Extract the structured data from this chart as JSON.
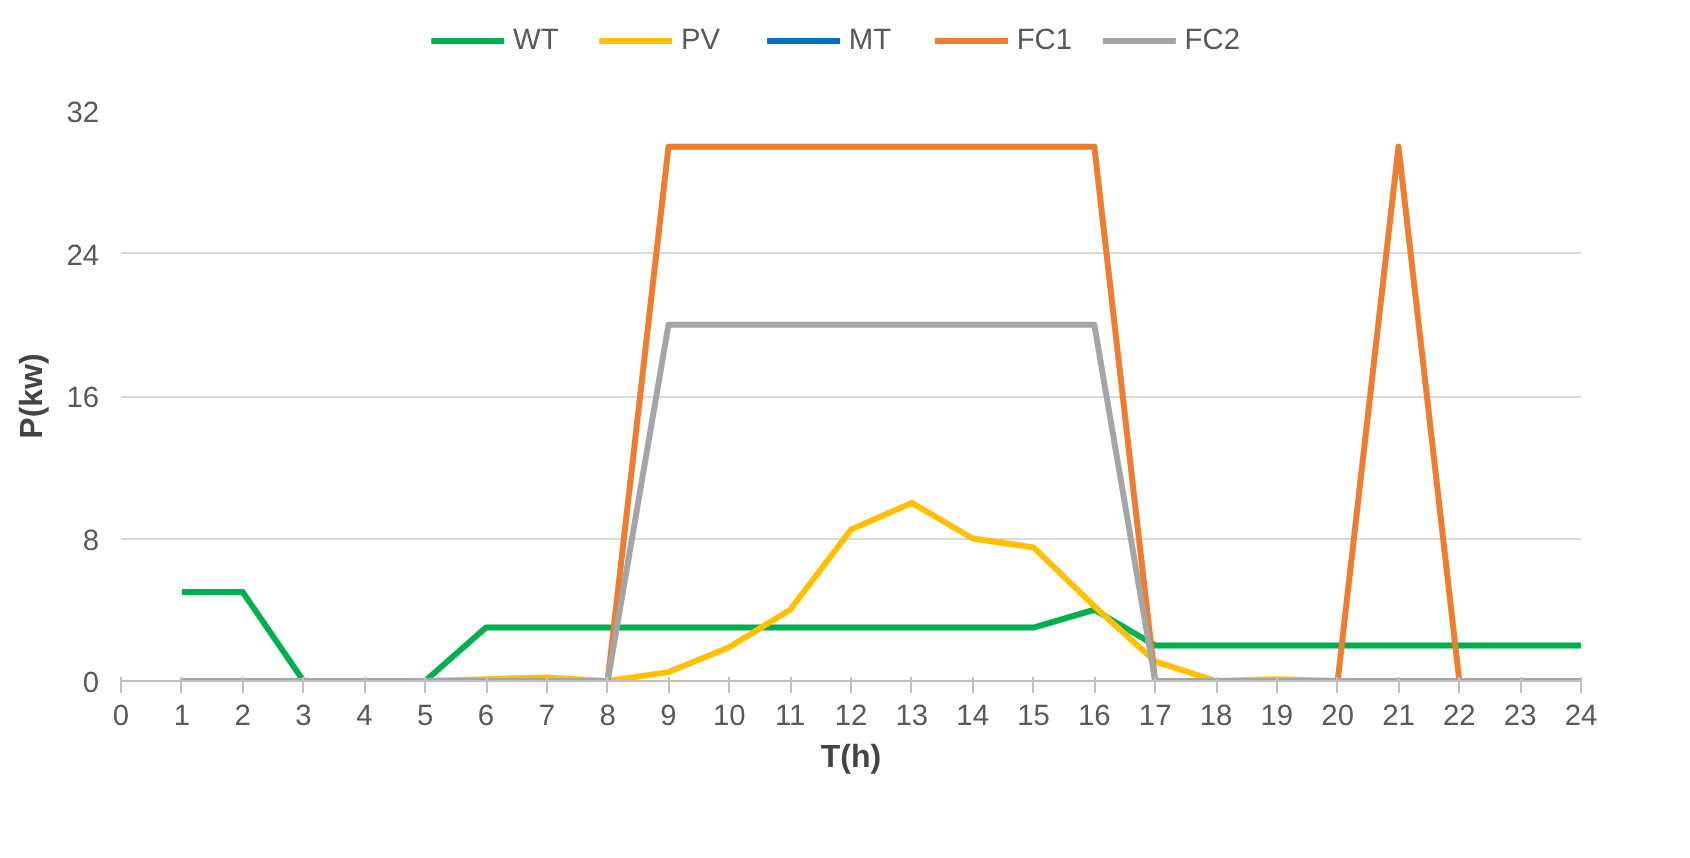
{
  "chart_data": {
    "type": "line",
    "xlabel": "T(h)",
    "ylabel": "P(kw)",
    "x": [
      1,
      2,
      3,
      4,
      5,
      6,
      7,
      8,
      9,
      10,
      11,
      12,
      13,
      14,
      15,
      16,
      17,
      18,
      19,
      20,
      21,
      22,
      23,
      24
    ],
    "series": [
      {
        "name": "WT",
        "color": "#00b050",
        "values": [
          5,
          5,
          0,
          0,
          0,
          3,
          3,
          3,
          3,
          3,
          3,
          3,
          3,
          3,
          3,
          4,
          2,
          2,
          2,
          2,
          2,
          2,
          2,
          2
        ]
      },
      {
        "name": "PV",
        "color": "#ffc000",
        "values": [
          null,
          null,
          null,
          0,
          0,
          0.1,
          0.2,
          0,
          0.5,
          1.9,
          4,
          8.5,
          10,
          8,
          7.5,
          4.2,
          1.1,
          0,
          0.1,
          0,
          0,
          null,
          null,
          null
        ]
      },
      {
        "name": "MT",
        "color": "#0070c0",
        "values": [
          null,
          null,
          null,
          null,
          null,
          null,
          null,
          null,
          null,
          null,
          null,
          null,
          null,
          null,
          null,
          null,
          null,
          null,
          null,
          null,
          null,
          null,
          null,
          null
        ]
      },
      {
        "name": "FC1",
        "color": "#ed7d31",
        "values": [
          null,
          null,
          null,
          null,
          null,
          null,
          null,
          0,
          30,
          30,
          30,
          30,
          30,
          30,
          30,
          30,
          0,
          null,
          null,
          0,
          30,
          0,
          null,
          null
        ]
      },
      {
        "name": "FC2",
        "color": "#a5a5a5",
        "values": [
          0,
          0,
          0,
          0,
          0,
          0,
          0,
          0,
          20,
          20,
          20,
          20,
          20,
          20,
          20,
          20,
          0,
          0,
          0,
          0,
          0,
          0,
          0,
          0
        ]
      }
    ],
    "xlim": [
      0,
      24
    ],
    "xticks": [
      0,
      1,
      2,
      3,
      4,
      5,
      6,
      7,
      8,
      9,
      10,
      11,
      12,
      13,
      14,
      15,
      16,
      17,
      18,
      19,
      20,
      21,
      22,
      23,
      24
    ],
    "ylim": [
      0,
      32
    ],
    "yticks": [
      0,
      8,
      16,
      24,
      32
    ],
    "grid": "y",
    "legend": "top",
    "marker": "none",
    "line_style": "solid"
  }
}
